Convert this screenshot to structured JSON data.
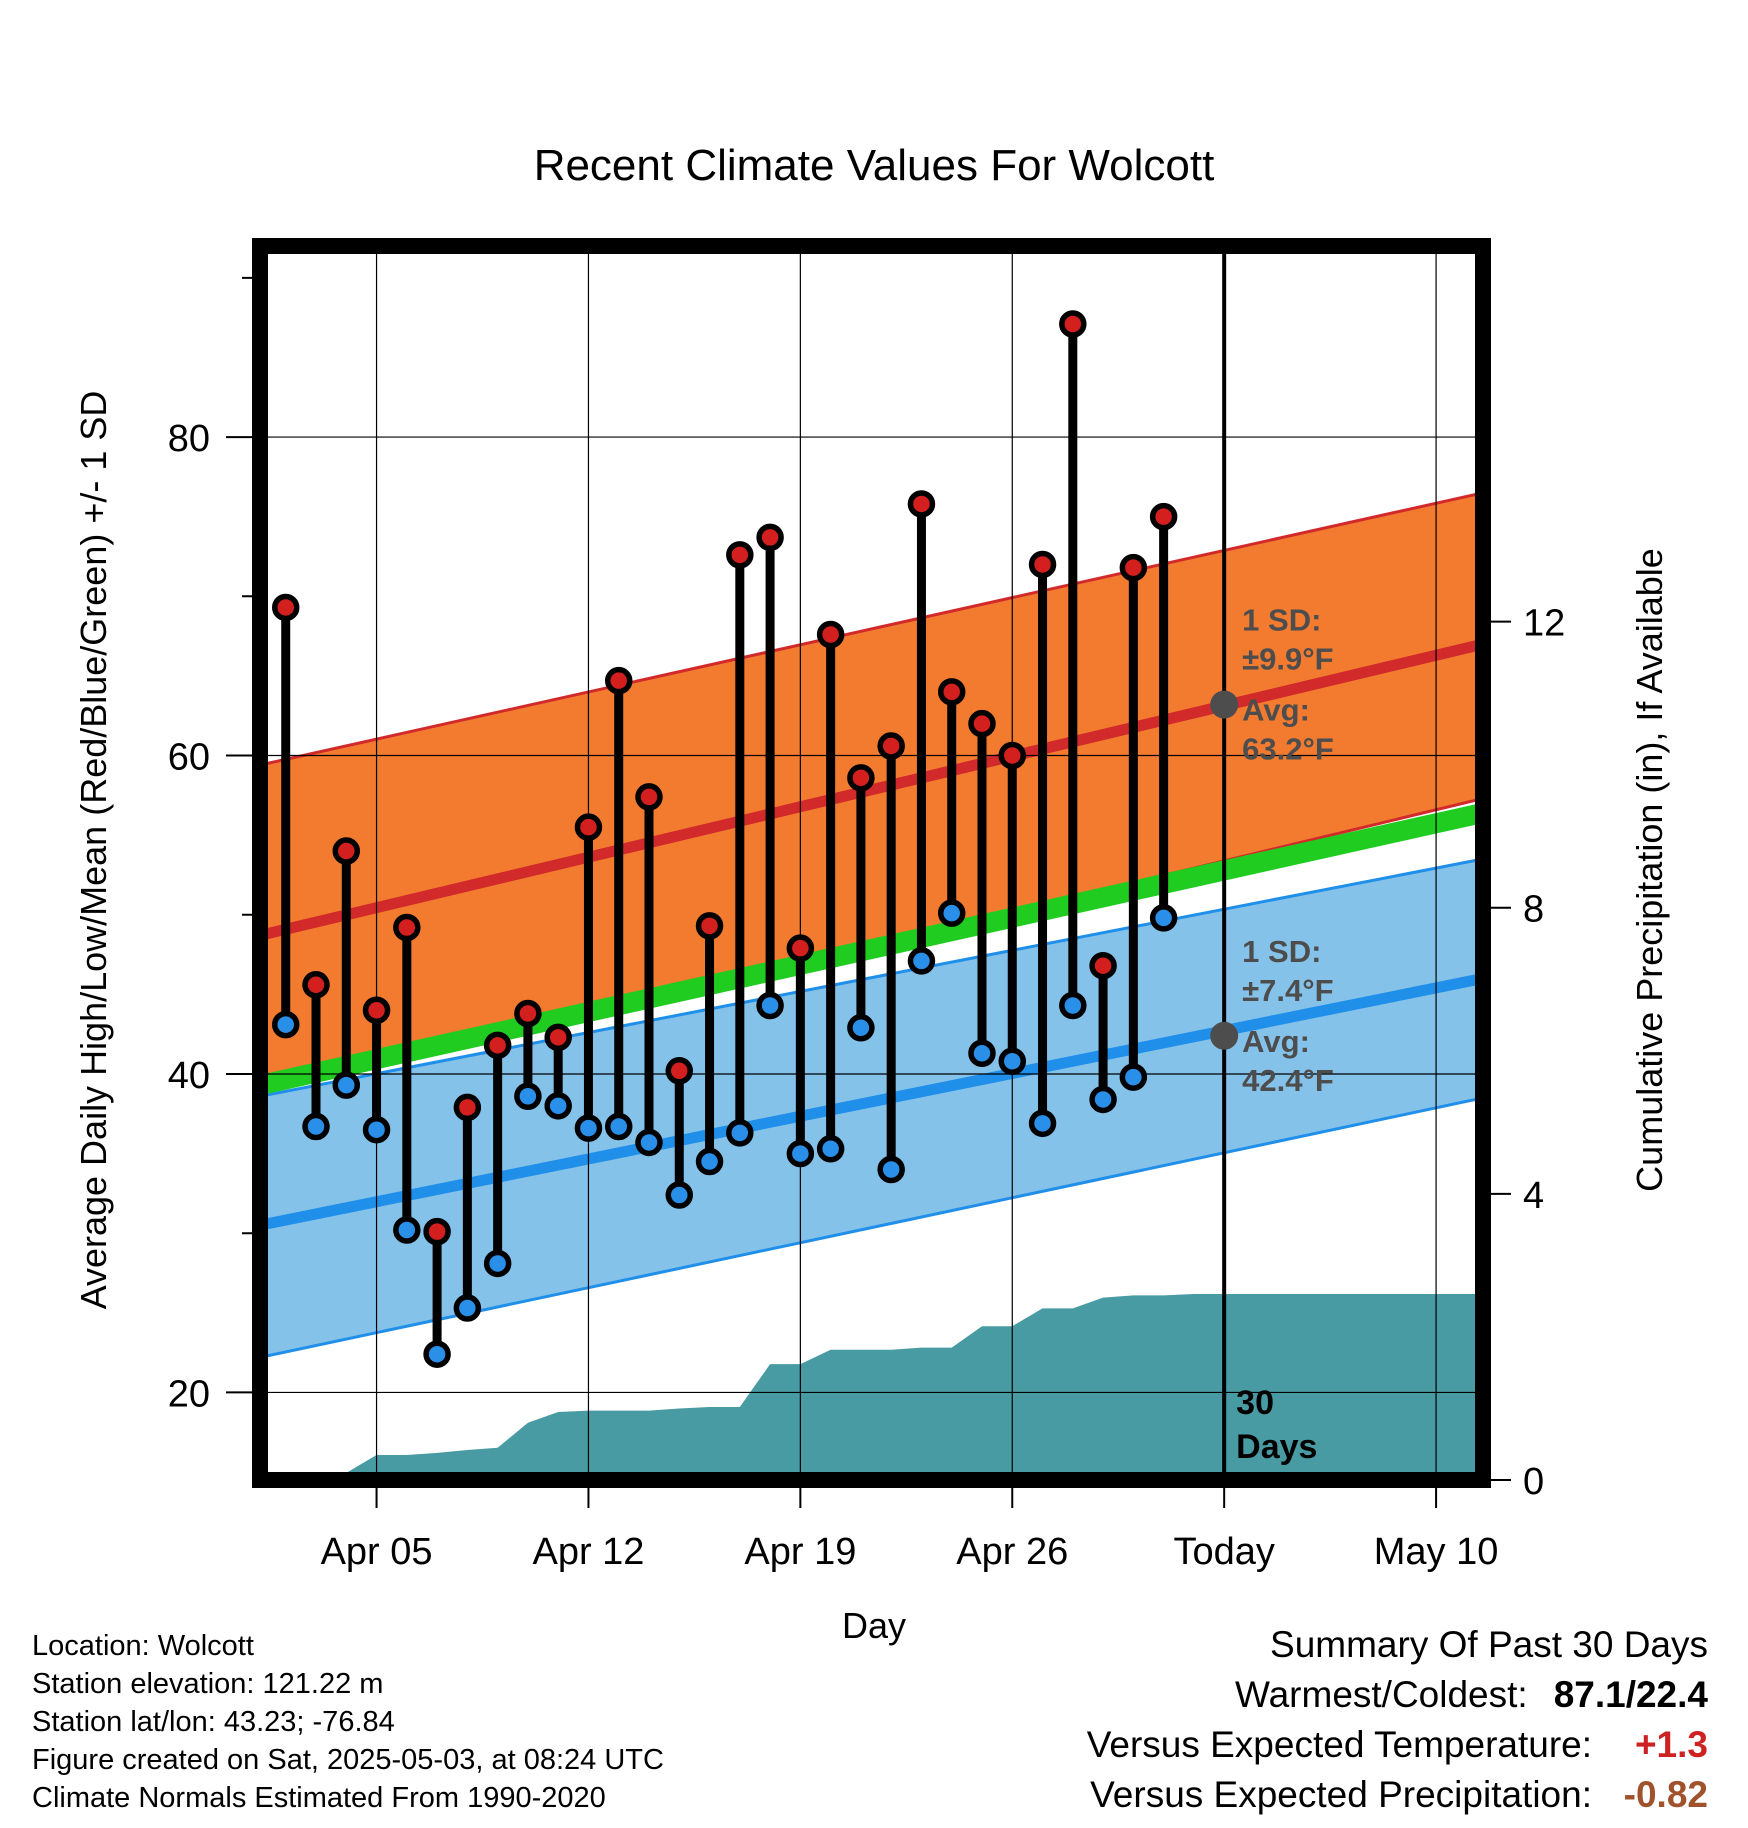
{
  "chart_data": {
    "type": "line",
    "title": "Recent Climate Values For Wolcott",
    "xlabel": "Day",
    "ylabel": "Average Daily High/Low/Mean (Red/Blue/Green) +/- 1 SD",
    "y2label": "Cumulative Precipitation (in), If Available",
    "ylim": [
      14.5,
      92
    ],
    "y2lim": [
      0,
      17.25
    ],
    "xlim": [
      -0.85,
      39.55
    ],
    "x_ticks": [
      {
        "x": 3,
        "label": "Apr 05"
      },
      {
        "x": 10,
        "label": "Apr 12"
      },
      {
        "x": 17,
        "label": "Apr 19"
      },
      {
        "x": 24,
        "label": "Apr 26"
      },
      {
        "x": 31,
        "label": "Today"
      },
      {
        "x": 38,
        "label": "May 10"
      }
    ],
    "y_ticks": [
      20,
      40,
      60,
      80
    ],
    "y_minor_ticks": [
      30,
      50,
      70,
      90
    ],
    "y2_ticks": [
      0,
      4,
      8,
      12
    ],
    "today_x": 31,
    "grid": true,
    "normals": {
      "x": [
        -0.85,
        39.55
      ],
      "high_mean": [
        48.7,
        67.0
      ],
      "high_sd_upper": [
        59.4,
        76.5
      ],
      "high_sd_lower": [
        38.8,
        57.3
      ],
      "low_mean": [
        30.5,
        46.0
      ],
      "low_sd_upper": [
        38.6,
        53.5
      ],
      "low_sd_lower": [
        22.2,
        38.5
      ],
      "mean": [
        39.3,
        56.4
      ]
    },
    "daily": {
      "x": [
        0,
        1,
        2,
        3,
        4,
        5,
        6,
        7,
        8,
        9,
        10,
        11,
        12,
        13,
        14,
        15,
        16,
        17,
        18,
        19,
        20,
        21,
        22,
        23,
        24,
        25,
        26,
        27,
        28,
        29,
        30
      ],
      "high": [
        69.3,
        45.6,
        54.0,
        44.0,
        49.2,
        30.1,
        37.9,
        41.8,
        43.8,
        42.3,
        55.5,
        64.7,
        57.4,
        40.2,
        49.3,
        72.6,
        73.7,
        47.9,
        67.6,
        58.6,
        60.6,
        75.8,
        64.0,
        62.0,
        60.0,
        72.0,
        87.1,
        46.8,
        71.8,
        75.0,
        null
      ],
      "low": [
        43.1,
        36.7,
        39.3,
        36.5,
        30.2,
        22.4,
        25.3,
        28.1,
        38.6,
        38.0,
        36.6,
        36.7,
        35.7,
        32.4,
        34.5,
        36.3,
        44.3,
        35.0,
        35.3,
        42.9,
        34.0,
        47.1,
        50.1,
        41.3,
        40.8,
        36.9,
        44.3,
        38.4,
        39.8,
        49.8,
        null
      ]
    },
    "precip": {
      "type": "area",
      "x": [
        -0.85,
        0,
        1,
        2,
        3,
        4,
        5,
        6,
        7,
        8,
        9,
        10,
        11,
        12,
        13,
        14,
        15,
        16,
        17,
        18,
        19,
        20,
        21,
        22,
        23,
        24,
        25,
        26,
        27,
        28,
        29,
        30,
        31,
        39.55
      ],
      "cumulative": [
        0.0,
        0.0,
        0.1,
        0.1,
        0.35,
        0.35,
        0.38,
        0.42,
        0.45,
        0.8,
        0.95,
        0.97,
        0.97,
        0.97,
        1.0,
        1.02,
        1.02,
        1.62,
        1.62,
        1.82,
        1.82,
        1.82,
        1.85,
        1.85,
        2.15,
        2.15,
        2.4,
        2.4,
        2.55,
        2.58,
        2.58,
        2.6,
        2.6,
        2.6
      ]
    },
    "annotations": {
      "high_sd_label": "1 SD:",
      "high_sd_value": "±9.9°F",
      "high_avg_label": "Avg:",
      "high_avg_value": "63.2°F",
      "high_avg_point": 63.2,
      "low_sd_label": "1 SD:",
      "low_sd_value": "±7.4°F",
      "low_avg_label": "Avg:",
      "low_avg_value": "42.4°F",
      "low_avg_point": 42.4,
      "days_line1": "30",
      "days_line2": "Days"
    },
    "colors": {
      "high_band": "#f27b30",
      "high_line": "#d22a2a",
      "low_band": "#85c2ea",
      "low_line": "#1f8fe9",
      "mean_line": "#1fcc1f",
      "precip": "#489ba3",
      "high_point": "#d41f1f",
      "low_point": "#2a8fe9",
      "avg_point": "#4d4d4d"
    }
  },
  "footer": {
    "location": "Location: Wolcott",
    "elevation": "Station elevation: 121.22 m",
    "latlon": "Station lat/lon: 43.23; -76.84",
    "created": "Figure created on Sat, 2025-05-03, at 08:24 UTC",
    "normals": "Climate Normals Estimated From 1990-2020"
  },
  "summary": {
    "heading": "Summary Of Past 30 Days",
    "warmest_coldest_label": "Warmest/Coldest:",
    "warmest_coldest_value": "87.1/22.4",
    "temp_label": "Versus Expected Temperature:",
    "temp_value": "+1.3",
    "temp_color": "#cc2222",
    "precip_label": "Versus Expected Precipitation:",
    "precip_value": "-0.82",
    "precip_color": "#a0522d"
  }
}
